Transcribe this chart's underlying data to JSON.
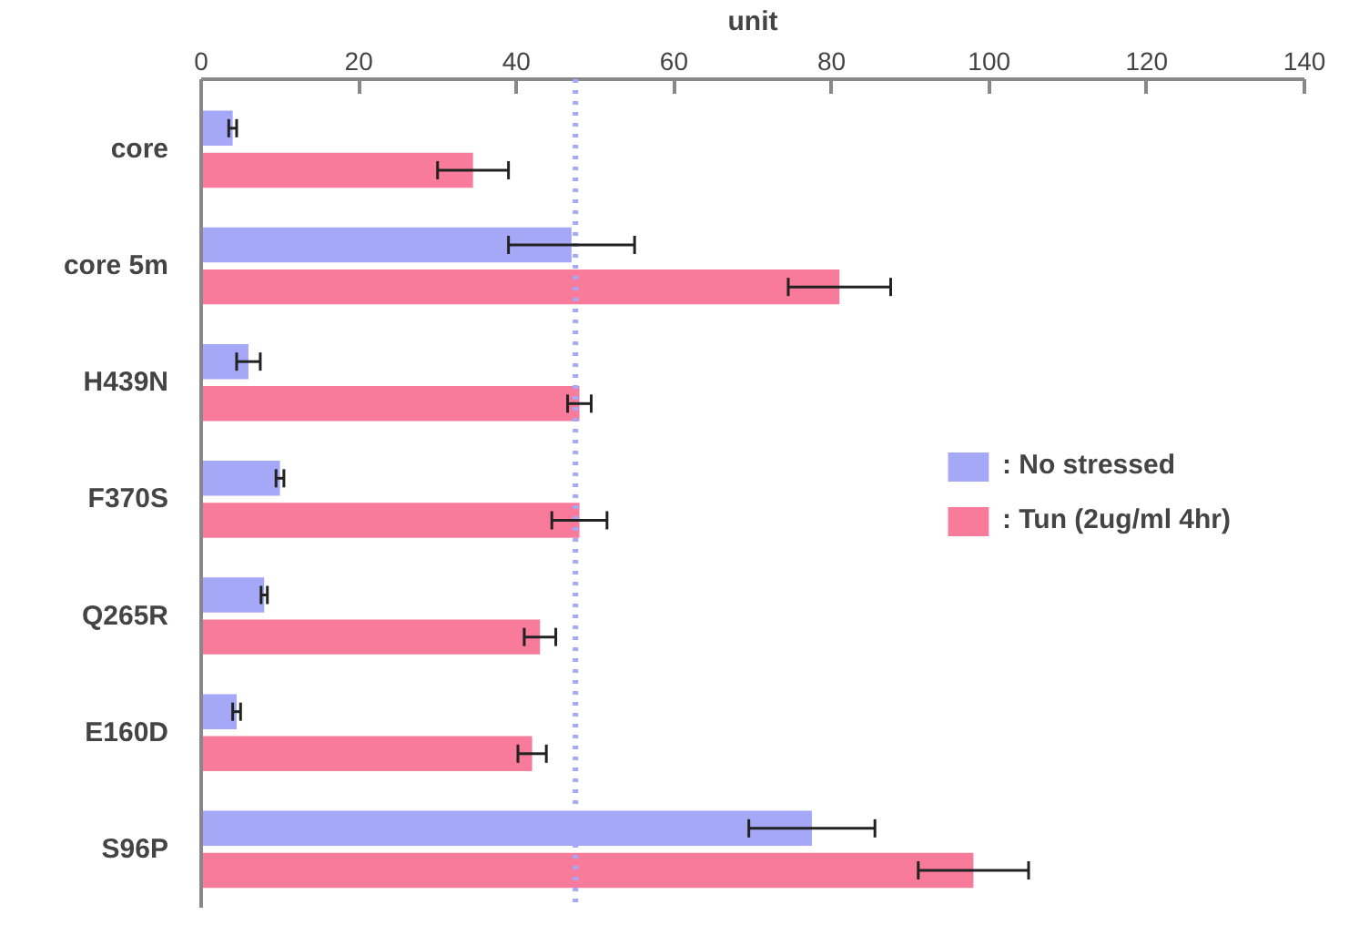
{
  "chart_data": {
    "type": "bar",
    "orientation": "horizontal",
    "xlabel": "unit",
    "categories": [
      "core",
      "core 5m",
      "H439N",
      "F370S",
      "Q265R",
      "E160D",
      "S96P"
    ],
    "series": [
      {
        "name": ": No stressed",
        "color": "#a4a8f6",
        "values": [
          4,
          47,
          6,
          10,
          8,
          4.5,
          77.5
        ],
        "errors": [
          0.5,
          8,
          1.5,
          0.5,
          0.4,
          0.5,
          8
        ]
      },
      {
        "name": ": Tun (2ug/ml 4hr)",
        "color": "#f87b9c",
        "values": [
          34.5,
          81,
          48,
          48,
          43,
          42,
          98
        ],
        "errors": [
          4.5,
          6.5,
          1.5,
          3.5,
          2,
          1.8,
          7
        ]
      }
    ],
    "xlim": [
      0,
      140
    ],
    "xticks": [
      0,
      20,
      40,
      60,
      80,
      100,
      120,
      140
    ],
    "ref_lines": [
      {
        "axis": "x",
        "value": 47.5,
        "color": "#a4a8f6",
        "line_style": "dotted"
      }
    ],
    "grid": false,
    "legend": "right"
  }
}
